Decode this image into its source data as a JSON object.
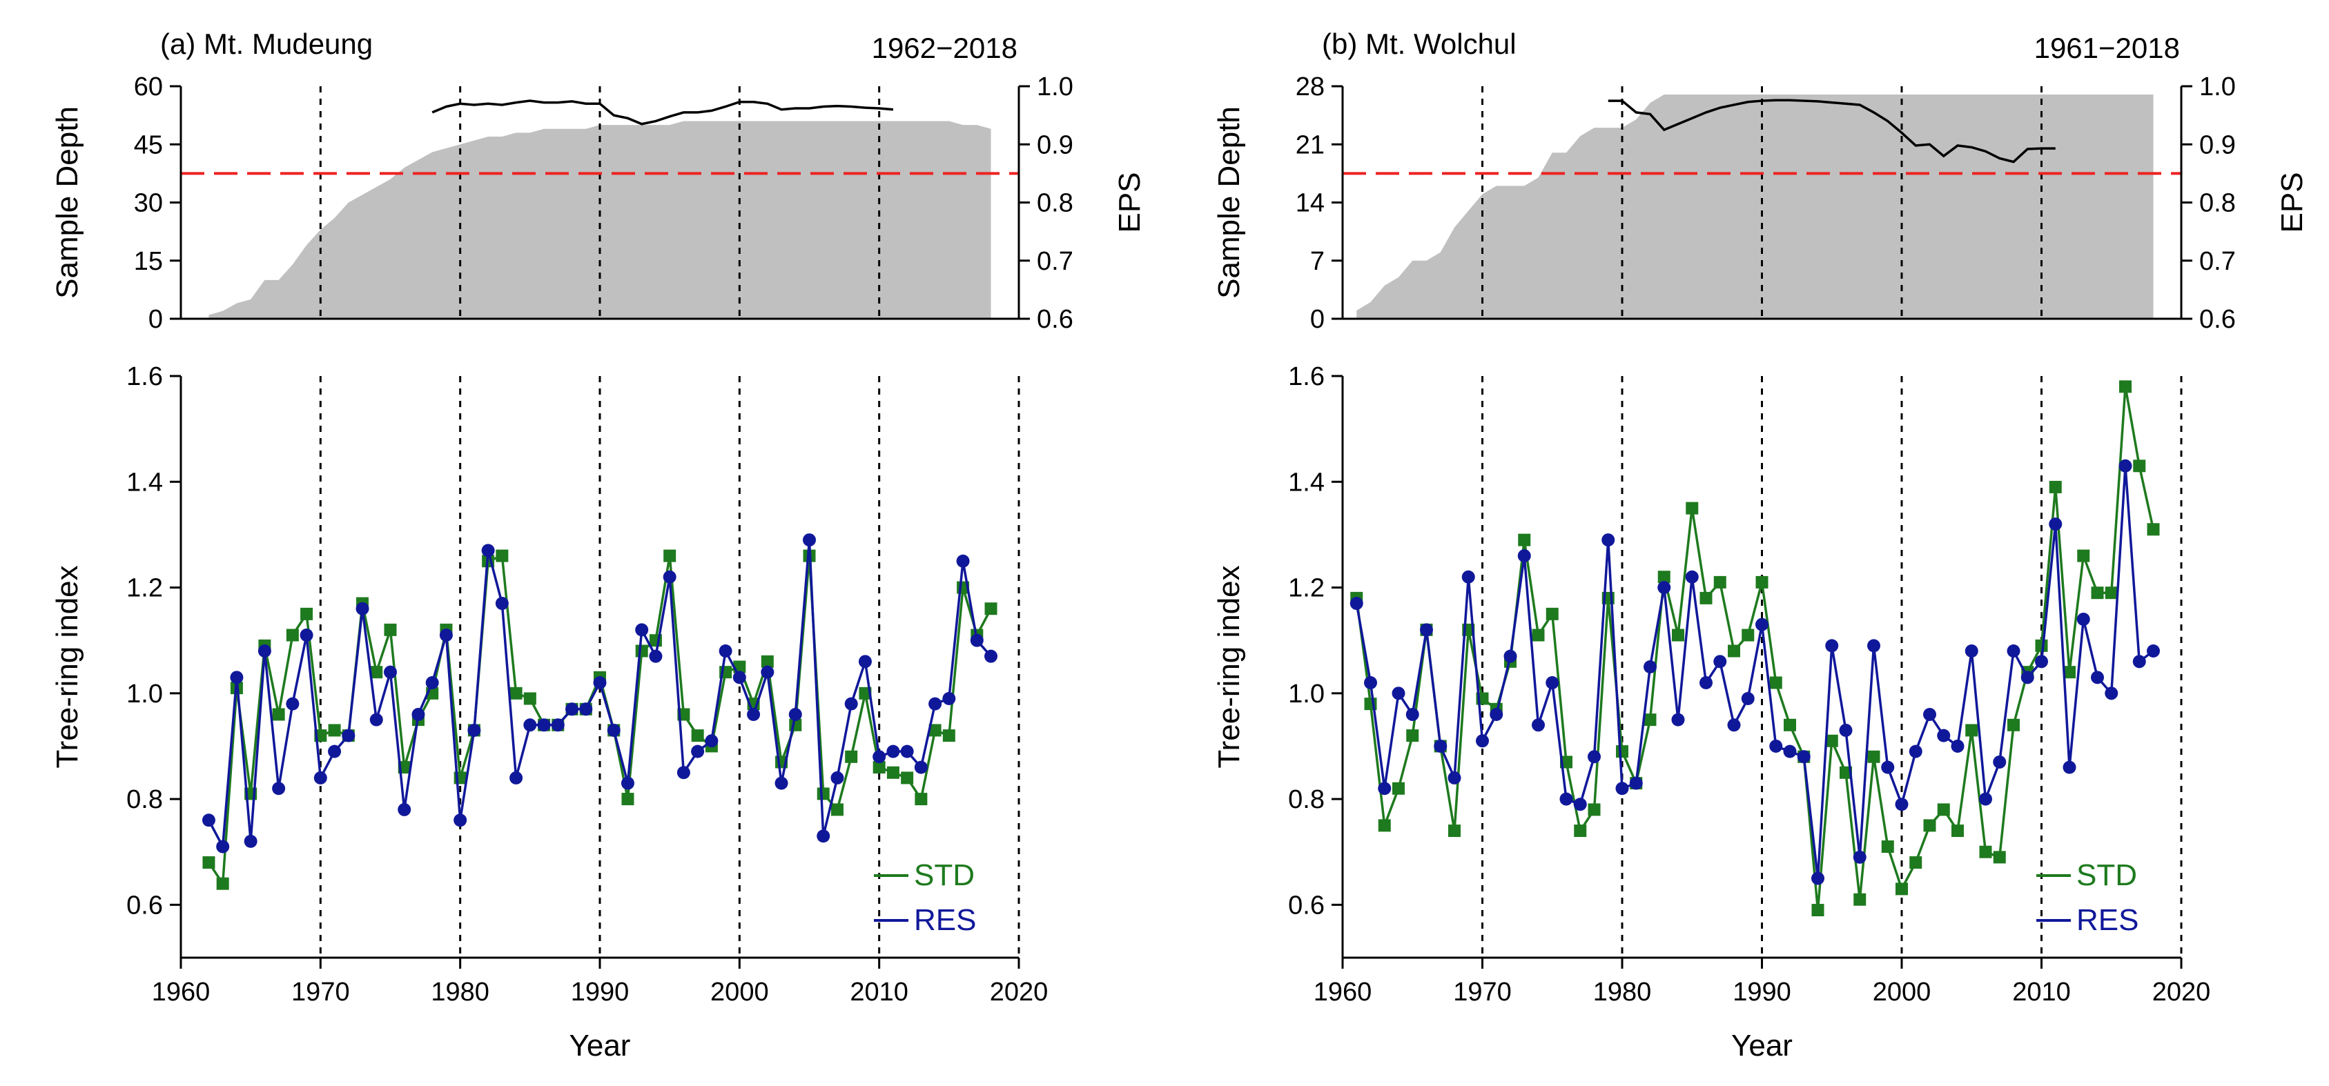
{
  "chart_data": [
    {
      "type": "area+line",
      "panel": "a-top",
      "title": "(a) Mt. Mudeung",
      "period": "1962−2018",
      "xlim": [
        1960,
        2020
      ],
      "ylabel": "Sample Depth",
      "ylim": [
        0,
        60
      ],
      "yticks": [
        0,
        15,
        30,
        45,
        60
      ],
      "y2label": "EPS",
      "y2lim": [
        0.6,
        1.0
      ],
      "y2ticks": [
        "0.6",
        "0.7",
        "0.8",
        "0.9",
        "1.0"
      ],
      "eps_threshold": 0.85,
      "vlines": [
        1970,
        1980,
        1990,
        2000,
        2010
      ],
      "colors": {
        "area": "#c0c0c0",
        "eps_line": "#000000",
        "threshold": "#ee2222"
      },
      "sample_depth": {
        "years": [
          1962,
          1963,
          1964,
          1965,
          1966,
          1967,
          1968,
          1969,
          1970,
          1971,
          1972,
          1973,
          1974,
          1975,
          1976,
          1977,
          1978,
          1979,
          1980,
          1981,
          1982,
          1983,
          1984,
          1985,
          1986,
          1987,
          1988,
          1989,
          1990,
          1991,
          1992,
          1993,
          1994,
          1995,
          1996,
          1997,
          1998,
          1999,
          2000,
          2001,
          2002,
          2003,
          2004,
          2005,
          2006,
          2007,
          2008,
          2009,
          2010,
          2011,
          2012,
          2013,
          2014,
          2015,
          2016,
          2017,
          2018
        ],
        "values": [
          1,
          2,
          4,
          5,
          10,
          10,
          14,
          19,
          23,
          26,
          30,
          32,
          34,
          36,
          39,
          41,
          43,
          44,
          45,
          46,
          47,
          47,
          48,
          48,
          49,
          49,
          49,
          49,
          50,
          50,
          50,
          50,
          50,
          50,
          51,
          51,
          51,
          51,
          51,
          51,
          51,
          51,
          51,
          51,
          51,
          51,
          51,
          51,
          51,
          51,
          51,
          51,
          51,
          51,
          50,
          50,
          49
        ]
      },
      "eps": {
        "years": [
          1978,
          1979,
          1980,
          1981,
          1982,
          1983,
          1984,
          1985,
          1986,
          1987,
          1988,
          1989,
          1990,
          1991,
          1992,
          1993,
          1994,
          1995,
          1996,
          1997,
          1998,
          1999,
          2000,
          2001,
          2002,
          2003,
          2004,
          2005,
          2006,
          2007,
          2008,
          2009,
          2010,
          2011
        ],
        "values": [
          0.955,
          0.965,
          0.97,
          0.968,
          0.97,
          0.968,
          0.972,
          0.975,
          0.972,
          0.972,
          0.974,
          0.97,
          0.97,
          0.95,
          0.945,
          0.935,
          0.94,
          0.948,
          0.955,
          0.955,
          0.958,
          0.965,
          0.973,
          0.973,
          0.97,
          0.96,
          0.962,
          0.962,
          0.965,
          0.966,
          0.965,
          0.963,
          0.962,
          0.96
        ]
      }
    },
    {
      "type": "line",
      "panel": "a-bottom",
      "xlabel": "Year",
      "ylabel": "Tree-ring index",
      "xlim": [
        1960,
        2020
      ],
      "xticks": [
        "1960",
        "1970",
        "1980",
        "1990",
        "2000",
        "2010",
        "2020"
      ],
      "ylim": [
        0.5,
        1.6
      ],
      "yticks": [
        "0.6",
        "0.8",
        "1.0",
        "1.2",
        "1.4",
        "1.6"
      ],
      "vlines": [
        1970,
        1980,
        1990,
        2000,
        2010,
        2020
      ],
      "legend": {
        "position": "bottom-right",
        "entries": [
          "STD",
          "RES"
        ]
      },
      "series": [
        {
          "name": "STD",
          "color": "#1e7a1e",
          "marker": "square",
          "x": [
            1962,
            1963,
            1964,
            1965,
            1966,
            1967,
            1968,
            1969,
            1970,
            1971,
            1972,
            1973,
            1974,
            1975,
            1976,
            1977,
            1978,
            1979,
            1980,
            1981,
            1982,
            1983,
            1984,
            1985,
            1986,
            1987,
            1988,
            1989,
            1990,
            1991,
            1992,
            1993,
            1994,
            1995,
            1996,
            1997,
            1998,
            1999,
            2000,
            2001,
            2002,
            2003,
            2004,
            2005,
            2006,
            2007,
            2008,
            2009,
            2010,
            2011,
            2012,
            2013,
            2014,
            2015,
            2016,
            2017,
            2018
          ],
          "values": [
            0.68,
            0.64,
            1.01,
            0.81,
            1.09,
            0.96,
            1.11,
            1.15,
            0.92,
            0.93,
            0.92,
            1.17,
            1.04,
            1.12,
            0.86,
            0.95,
            1.0,
            1.12,
            0.84,
            0.93,
            1.25,
            1.26,
            1.0,
            0.99,
            0.94,
            0.94,
            0.97,
            0.97,
            1.03,
            0.93,
            0.8,
            1.08,
            1.1,
            1.26,
            0.96,
            0.92,
            0.9,
            1.04,
            1.05,
            0.98,
            1.06,
            0.87,
            0.94,
            1.26,
            0.81,
            0.78,
            0.88,
            1.0,
            0.86,
            0.85,
            0.84,
            0.8,
            0.93,
            0.92,
            1.2,
            1.11,
            1.16
          ]
        },
        {
          "name": "RES",
          "color": "#10189a",
          "marker": "circle",
          "x": [
            1962,
            1963,
            1964,
            1965,
            1966,
            1967,
            1968,
            1969,
            1970,
            1971,
            1972,
            1973,
            1974,
            1975,
            1976,
            1977,
            1978,
            1979,
            1980,
            1981,
            1982,
            1983,
            1984,
            1985,
            1986,
            1987,
            1988,
            1989,
            1990,
            1991,
            1992,
            1993,
            1994,
            1995,
            1996,
            1997,
            1998,
            1999,
            2000,
            2001,
            2002,
            2003,
            2004,
            2005,
            2006,
            2007,
            2008,
            2009,
            2010,
            2011,
            2012,
            2013,
            2014,
            2015,
            2016,
            2017,
            2018
          ],
          "values": [
            0.76,
            0.71,
            1.03,
            0.72,
            1.08,
            0.82,
            0.98,
            1.11,
            0.84,
            0.89,
            0.92,
            1.16,
            0.95,
            1.04,
            0.78,
            0.96,
            1.02,
            1.11,
            0.76,
            0.93,
            1.27,
            1.17,
            0.84,
            0.94,
            0.94,
            0.94,
            0.97,
            0.97,
            1.02,
            0.93,
            0.83,
            1.12,
            1.07,
            1.22,
            0.85,
            0.89,
            0.91,
            1.08,
            1.03,
            0.96,
            1.04,
            0.83,
            0.96,
            1.29,
            0.73,
            0.84,
            0.98,
            1.06,
            0.88,
            0.89,
            0.89,
            0.86,
            0.98,
            0.99,
            1.25,
            1.1,
            1.07
          ]
        }
      ]
    },
    {
      "type": "area+line",
      "panel": "b-top",
      "title": "(b) Mt. Wolchul",
      "period": "1961−2018",
      "xlim": [
        1960,
        2020
      ],
      "ylabel": "Sample Depth",
      "ylim": [
        0,
        28
      ],
      "yticks": [
        0,
        7,
        14,
        21,
        28
      ],
      "y2label": "EPS",
      "y2lim": [
        0.6,
        1.0
      ],
      "y2ticks": [
        "0.6",
        "0.7",
        "0.8",
        "0.9",
        "1.0"
      ],
      "eps_threshold": 0.85,
      "vlines": [
        1970,
        1980,
        1990,
        2000,
        2010
      ],
      "colors": {
        "area": "#c0c0c0",
        "eps_line": "#000000",
        "threshold": "#ee2222"
      },
      "sample_depth": {
        "years": [
          1961,
          1962,
          1963,
          1964,
          1965,
          1966,
          1967,
          1968,
          1969,
          1970,
          1971,
          1972,
          1973,
          1974,
          1975,
          1976,
          1977,
          1978,
          1979,
          1980,
          1981,
          1982,
          1983,
          1984,
          1985,
          1986,
          1987,
          1988,
          1989,
          1990,
          1991,
          1992,
          1993,
          1994,
          1995,
          1996,
          1997,
          1998,
          1999,
          2000,
          2001,
          2002,
          2003,
          2004,
          2005,
          2006,
          2007,
          2008,
          2009,
          2010,
          2011,
          2012,
          2013,
          2014,
          2015,
          2016,
          2017,
          2018
        ],
        "values": [
          1,
          2,
          4,
          5,
          7,
          7,
          8,
          11,
          13,
          15,
          16,
          16,
          16,
          17,
          20,
          20,
          22,
          23,
          23,
          23,
          24,
          26,
          27,
          27,
          27,
          27,
          27,
          27,
          27,
          27,
          27,
          27,
          27,
          27,
          27,
          27,
          27,
          27,
          27,
          27,
          27,
          27,
          27,
          27,
          27,
          27,
          27,
          27,
          27,
          27,
          27,
          27,
          27,
          27,
          27,
          27,
          27,
          27
        ]
      },
      "eps": {
        "years": [
          1979,
          1980,
          1981,
          1982,
          1983,
          1984,
          1985,
          1986,
          1987,
          1988,
          1989,
          1990,
          1991,
          1992,
          1993,
          1994,
          1995,
          1996,
          1997,
          1998,
          1999,
          2000,
          2001,
          2002,
          2003,
          2004,
          2005,
          2006,
          2007,
          2008,
          2009,
          2010,
          2011
        ],
        "values": [
          0.975,
          0.975,
          0.955,
          0.952,
          0.925,
          0.935,
          0.945,
          0.955,
          0.963,
          0.968,
          0.973,
          0.975,
          0.976,
          0.976,
          0.975,
          0.974,
          0.972,
          0.97,
          0.968,
          0.955,
          0.94,
          0.92,
          0.898,
          0.9,
          0.88,
          0.898,
          0.895,
          0.888,
          0.876,
          0.87,
          0.892,
          0.893,
          0.893
        ]
      }
    },
    {
      "type": "line",
      "panel": "b-bottom",
      "xlabel": "Year",
      "ylabel": "Tree-ring index",
      "xlim": [
        1960,
        2020
      ],
      "xticks": [
        "1960",
        "1970",
        "1980",
        "1990",
        "2000",
        "2010",
        "2020"
      ],
      "ylim": [
        0.5,
        1.6
      ],
      "yticks": [
        "0.6",
        "0.8",
        "1.0",
        "1.2",
        "1.4",
        "1.6"
      ],
      "vlines": [
        1970,
        1980,
        1990,
        2000,
        2010,
        2020
      ],
      "legend": {
        "position": "bottom-right",
        "entries": [
          "STD",
          "RES"
        ]
      },
      "series": [
        {
          "name": "STD",
          "color": "#1e7a1e",
          "marker": "square",
          "x": [
            1961,
            1962,
            1963,
            1964,
            1965,
            1966,
            1967,
            1968,
            1969,
            1970,
            1971,
            1972,
            1973,
            1974,
            1975,
            1976,
            1977,
            1978,
            1979,
            1980,
            1981,
            1982,
            1983,
            1984,
            1985,
            1986,
            1987,
            1988,
            1989,
            1990,
            1991,
            1992,
            1993,
            1994,
            1995,
            1996,
            1997,
            1998,
            1999,
            2000,
            2001,
            2002,
            2003,
            2004,
            2005,
            2006,
            2007,
            2008,
            2009,
            2010,
            2011,
            2012,
            2013,
            2014,
            2015,
            2016,
            2017,
            2018
          ],
          "values": [
            1.18,
            0.98,
            0.75,
            0.82,
            0.92,
            1.12,
            0.9,
            0.74,
            1.12,
            0.99,
            0.97,
            1.06,
            1.29,
            1.11,
            1.15,
            0.87,
            0.74,
            0.78,
            1.18,
            0.89,
            0.83,
            0.95,
            1.22,
            1.11,
            1.35,
            1.18,
            1.21,
            1.08,
            1.11,
            1.21,
            1.02,
            0.94,
            0.88,
            0.59,
            0.91,
            0.85,
            0.61,
            0.88,
            0.71,
            0.63,
            0.68,
            0.75,
            0.78,
            0.74,
            0.93,
            0.7,
            0.69,
            0.94,
            1.04,
            1.09,
            1.39,
            1.04,
            1.26,
            1.19,
            1.19,
            1.58,
            1.43,
            1.31
          ]
        },
        {
          "name": "RES",
          "color": "#10189a",
          "marker": "circle",
          "x": [
            1961,
            1962,
            1963,
            1964,
            1965,
            1966,
            1967,
            1968,
            1969,
            1970,
            1971,
            1972,
            1973,
            1974,
            1975,
            1976,
            1977,
            1978,
            1979,
            1980,
            1981,
            1982,
            1983,
            1984,
            1985,
            1986,
            1987,
            1988,
            1989,
            1990,
            1991,
            1992,
            1993,
            1994,
            1995,
            1996,
            1997,
            1998,
            1999,
            2000,
            2001,
            2002,
            2003,
            2004,
            2005,
            2006,
            2007,
            2008,
            2009,
            2010,
            2011,
            2012,
            2013,
            2014,
            2015,
            2016,
            2017,
            2018
          ],
          "values": [
            1.17,
            1.02,
            0.82,
            1.0,
            0.96,
            1.12,
            0.9,
            0.84,
            1.22,
            0.91,
            0.96,
            1.07,
            1.26,
            0.94,
            1.02,
            0.8,
            0.79,
            0.88,
            1.29,
            0.82,
            0.83,
            1.05,
            1.2,
            0.95,
            1.22,
            1.02,
            1.06,
            0.94,
            0.99,
            1.13,
            0.9,
            0.89,
            0.88,
            0.65,
            1.09,
            0.93,
            0.69,
            1.09,
            0.86,
            0.79,
            0.89,
            0.96,
            0.92,
            0.9,
            1.08,
            0.8,
            0.87,
            1.08,
            1.03,
            1.06,
            1.32,
            0.86,
            1.14,
            1.03,
            1.0,
            1.43,
            1.06,
            1.08
          ]
        }
      ]
    }
  ]
}
